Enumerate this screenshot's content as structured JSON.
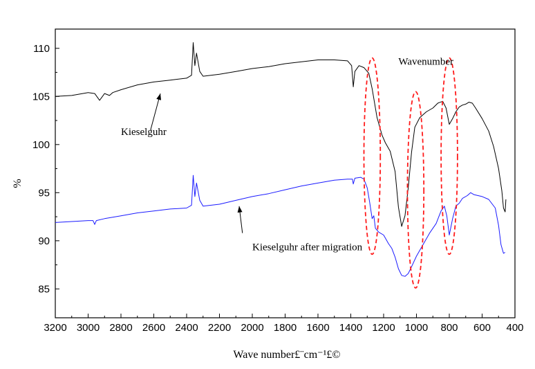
{
  "chart_data": {
    "type": "line",
    "title": "",
    "xlabel": "Wave number£¨cm⁻¹£©",
    "ylabel": "%",
    "xlim": [
      3200,
      400
    ],
    "ylim": [
      82,
      112
    ],
    "x_reversed": true,
    "grid": false,
    "legend": "none",
    "xticks": [
      3200,
      3000,
      2800,
      2600,
      2400,
      2200,
      2000,
      1800,
      1600,
      1400,
      1200,
      1000,
      800,
      600,
      400
    ],
    "yticks": [
      85,
      90,
      95,
      100,
      105,
      110
    ],
    "series": [
      {
        "color": "#000000",
        "points": [
          [
            3200,
            105.0
          ],
          [
            3100,
            105.1
          ],
          [
            3000,
            105.4
          ],
          [
            2960,
            105.3
          ],
          [
            2930,
            104.6
          ],
          [
            2900,
            105.3
          ],
          [
            2870,
            105.1
          ],
          [
            2850,
            105.4
          ],
          [
            2800,
            105.7
          ],
          [
            2700,
            106.2
          ],
          [
            2600,
            106.5
          ],
          [
            2500,
            106.7
          ],
          [
            2400,
            106.9
          ],
          [
            2370,
            107.2
          ],
          [
            2360,
            110.6
          ],
          [
            2350,
            108.2
          ],
          [
            2340,
            109.5
          ],
          [
            2320,
            107.6
          ],
          [
            2300,
            107.1
          ],
          [
            2200,
            107.3
          ],
          [
            2100,
            107.6
          ],
          [
            2000,
            107.9
          ],
          [
            1900,
            108.1
          ],
          [
            1800,
            108.4
          ],
          [
            1700,
            108.6
          ],
          [
            1600,
            108.8
          ],
          [
            1500,
            108.8
          ],
          [
            1420,
            108.7
          ],
          [
            1395,
            108.2
          ],
          [
            1385,
            106.0
          ],
          [
            1375,
            107.6
          ],
          [
            1350,
            108.2
          ],
          [
            1320,
            108.0
          ],
          [
            1290,
            107.4
          ],
          [
            1270,
            105.8
          ],
          [
            1240,
            102.8
          ],
          [
            1210,
            101.0
          ],
          [
            1190,
            100.2
          ],
          [
            1160,
            99.3
          ],
          [
            1130,
            97.2
          ],
          [
            1110,
            93.5
          ],
          [
            1090,
            91.5
          ],
          [
            1070,
            92.6
          ],
          [
            1050,
            95.5
          ],
          [
            1030,
            99.2
          ],
          [
            1010,
            101.8
          ],
          [
            980,
            102.8
          ],
          [
            940,
            103.4
          ],
          [
            900,
            103.8
          ],
          [
            870,
            104.3
          ],
          [
            840,
            104.5
          ],
          [
            820,
            103.8
          ],
          [
            800,
            102.1
          ],
          [
            780,
            102.7
          ],
          [
            760,
            103.4
          ],
          [
            740,
            103.9
          ],
          [
            720,
            104.1
          ],
          [
            700,
            104.2
          ],
          [
            680,
            104.4
          ],
          [
            660,
            104.3
          ],
          [
            640,
            103.8
          ],
          [
            600,
            102.7
          ],
          [
            560,
            101.4
          ],
          [
            530,
            99.8
          ],
          [
            500,
            97.5
          ],
          [
            480,
            95.2
          ],
          [
            470,
            93.4
          ],
          [
            460,
            93.0
          ],
          [
            455,
            94.3
          ]
        ]
      },
      {
        "color": "#1a1aff",
        "points": [
          [
            3200,
            91.9
          ],
          [
            3100,
            92.0
          ],
          [
            3000,
            92.1
          ],
          [
            2970,
            92.1
          ],
          [
            2960,
            91.7
          ],
          [
            2950,
            92.1
          ],
          [
            2900,
            92.3
          ],
          [
            2800,
            92.6
          ],
          [
            2700,
            92.9
          ],
          [
            2600,
            93.1
          ],
          [
            2500,
            93.3
          ],
          [
            2400,
            93.4
          ],
          [
            2370,
            93.7
          ],
          [
            2360,
            96.8
          ],
          [
            2350,
            94.6
          ],
          [
            2340,
            96.0
          ],
          [
            2320,
            94.2
          ],
          [
            2300,
            93.6
          ],
          [
            2200,
            93.8
          ],
          [
            2100,
            94.2
          ],
          [
            2000,
            94.6
          ],
          [
            1900,
            94.9
          ],
          [
            1800,
            95.3
          ],
          [
            1700,
            95.7
          ],
          [
            1600,
            96.0
          ],
          [
            1500,
            96.3
          ],
          [
            1420,
            96.4
          ],
          [
            1390,
            96.4
          ],
          [
            1385,
            95.9
          ],
          [
            1375,
            96.5
          ],
          [
            1340,
            96.6
          ],
          [
            1320,
            96.4
          ],
          [
            1300,
            95.5
          ],
          [
            1285,
            94.0
          ],
          [
            1270,
            92.3
          ],
          [
            1260,
            92.6
          ],
          [
            1250,
            91.3
          ],
          [
            1230,
            90.9
          ],
          [
            1200,
            90.6
          ],
          [
            1170,
            89.7
          ],
          [
            1150,
            89.2
          ],
          [
            1130,
            88.3
          ],
          [
            1110,
            87.1
          ],
          [
            1090,
            86.4
          ],
          [
            1070,
            86.3
          ],
          [
            1050,
            86.6
          ],
          [
            1030,
            87.3
          ],
          [
            1000,
            88.4
          ],
          [
            960,
            89.6
          ],
          [
            920,
            90.8
          ],
          [
            880,
            91.8
          ],
          [
            850,
            93.1
          ],
          [
            830,
            93.6
          ],
          [
            815,
            92.6
          ],
          [
            800,
            90.6
          ],
          [
            780,
            92.3
          ],
          [
            760,
            93.6
          ],
          [
            740,
            93.9
          ],
          [
            720,
            94.4
          ],
          [
            690,
            94.7
          ],
          [
            670,
            95.0
          ],
          [
            650,
            94.8
          ],
          [
            600,
            94.6
          ],
          [
            560,
            94.3
          ],
          [
            520,
            93.4
          ],
          [
            500,
            91.6
          ],
          [
            485,
            89.6
          ],
          [
            470,
            88.7
          ],
          [
            460,
            88.8
          ]
        ]
      }
    ],
    "annotations": [
      {
        "text": "Kieselguhr",
        "at": [
          2800,
          101.0
        ]
      },
      {
        "text": "Kieselguhr after migration",
        "at": [
          2000,
          89.0
        ]
      },
      {
        "text": "Wavenumber",
        "at": [
          1110,
          108.3
        ]
      }
    ],
    "arrows": [
      {
        "from": [
          2620,
          101.5
        ],
        "to": [
          2560,
          105.3
        ]
      },
      {
        "from": [
          2060,
          90.8
        ],
        "to": [
          2080,
          93.6
        ]
      }
    ],
    "highlight_ellipses": [
      {
        "center": [
          1270,
          98.8
        ],
        "rx_units": 50,
        "ry_units": 10.2
      },
      {
        "center": [
          1005,
          95.3
        ],
        "rx_units": 50,
        "ry_units": 10.2
      },
      {
        "center": [
          800,
          98.8
        ],
        "rx_units": 50,
        "ry_units": 10.2
      }
    ]
  }
}
